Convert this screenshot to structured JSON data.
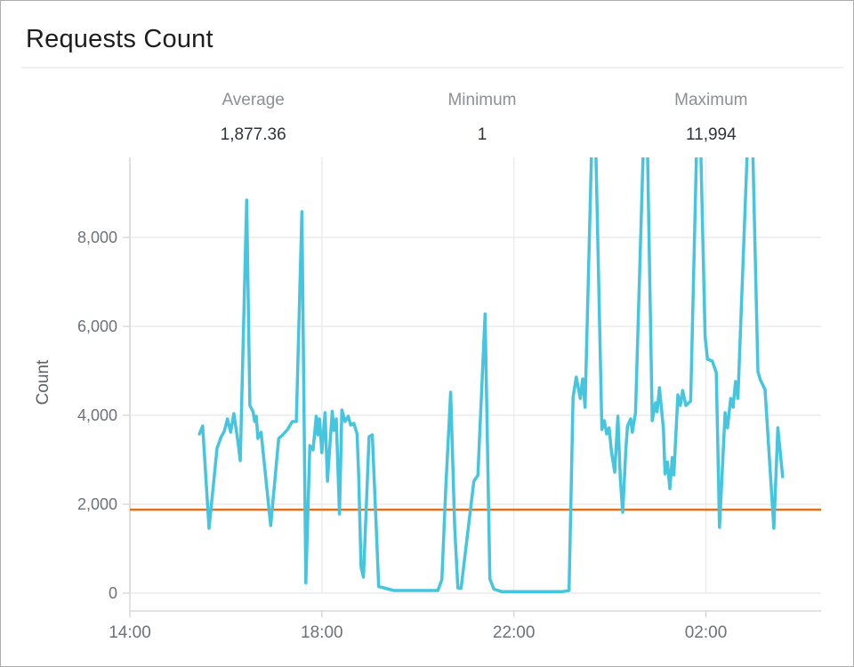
{
  "window": {
    "title": "Requests Count"
  },
  "chart_data": {
    "type": "line",
    "title": "Requests Count",
    "ylabel": "Count",
    "summary": [
      {
        "label": "Average",
        "value": "1,877.36"
      },
      {
        "label": "Minimum",
        "value": "1"
      },
      {
        "label": "Maximum",
        "value": "11,994"
      }
    ],
    "x_axis": {
      "unit": "minutes since 14:00",
      "minutes_range": [
        0,
        864
      ],
      "ticks": [
        {
          "t": 0,
          "label": "14:00"
        },
        {
          "t": 240,
          "label": "18:00"
        },
        {
          "t": 480,
          "label": "22:00"
        },
        {
          "t": 720,
          "label": "02:00"
        }
      ]
    },
    "y_axis": {
      "range": [
        0,
        9800
      ],
      "ticks": [
        {
          "v": 0,
          "label": "0"
        },
        {
          "v": 2000,
          "label": "2,000"
        },
        {
          "v": 4000,
          "label": "4,000"
        },
        {
          "v": 6000,
          "label": "6,000"
        },
        {
          "v": 8000,
          "label": "8,000"
        }
      ]
    },
    "reference_line": {
      "name": "average",
      "value": 1877.36,
      "color": "#e0711f",
      "stroke_width": 2.5
    },
    "colors": {
      "grid": "#ececec",
      "axis": "#d8d8d8",
      "tick_mark": "#c9c9c9"
    },
    "series": [
      {
        "name": "Requests Count",
        "color": "#45c5de",
        "stroke_width": 3.5,
        "points": [
          [
            87,
            3580
          ],
          [
            91,
            3760
          ],
          [
            99,
            1460
          ],
          [
            109,
            3260
          ],
          [
            114,
            3510
          ],
          [
            118,
            3640
          ],
          [
            122,
            3920
          ],
          [
            126,
            3620
          ],
          [
            130,
            4040
          ],
          [
            135,
            3420
          ],
          [
            138,
            2980
          ],
          [
            146,
            8840
          ],
          [
            150,
            4220
          ],
          [
            154,
            4080
          ],
          [
            156,
            3860
          ],
          [
            158,
            3980
          ],
          [
            160,
            3480
          ],
          [
            164,
            3620
          ],
          [
            176,
            1520
          ],
          [
            186,
            3480
          ],
          [
            191,
            3560
          ],
          [
            197,
            3680
          ],
          [
            203,
            3860
          ],
          [
            208,
            3860
          ],
          [
            215,
            8580
          ],
          [
            220,
            230
          ],
          [
            225,
            3320
          ],
          [
            229,
            3220
          ],
          [
            233,
            3980
          ],
          [
            235,
            3560
          ],
          [
            237,
            3920
          ],
          [
            240,
            3160
          ],
          [
            244,
            4060
          ],
          [
            247,
            2520
          ],
          [
            253,
            4090
          ],
          [
            255,
            3660
          ],
          [
            258,
            3920
          ],
          [
            262,
            1780
          ],
          [
            265,
            4120
          ],
          [
            269,
            3860
          ],
          [
            273,
            3980
          ],
          [
            276,
            3780
          ],
          [
            280,
            3820
          ],
          [
            284,
            3580
          ],
          [
            286,
            2660
          ],
          [
            289,
            580
          ],
          [
            292,
            360
          ],
          [
            299,
            3520
          ],
          [
            303,
            3560
          ],
          [
            308,
            1460
          ],
          [
            311,
            150
          ],
          [
            330,
            60
          ],
          [
            385,
            60
          ],
          [
            390,
            300
          ],
          [
            395,
            2400
          ],
          [
            401,
            4520
          ],
          [
            406,
            1500
          ],
          [
            410,
            120
          ],
          [
            414,
            110
          ],
          [
            430,
            2520
          ],
          [
            435,
            2650
          ],
          [
            444,
            6280
          ],
          [
            450,
            320
          ],
          [
            455,
            90
          ],
          [
            465,
            35
          ],
          [
            540,
            35
          ],
          [
            549,
            60
          ],
          [
            554,
            4400
          ],
          [
            558,
            4860
          ],
          [
            563,
            4380
          ],
          [
            566,
            4820
          ],
          [
            569,
            4180
          ],
          [
            580,
            11994
          ],
          [
            590,
            3680
          ],
          [
            593,
            3880
          ],
          [
            596,
            3580
          ],
          [
            599,
            3720
          ],
          [
            602,
            3180
          ],
          [
            606,
            2720
          ],
          [
            610,
            3980
          ],
          [
            613,
            2580
          ],
          [
            616,
            1820
          ],
          [
            620,
            3260
          ],
          [
            622,
            3760
          ],
          [
            626,
            3920
          ],
          [
            628,
            3620
          ],
          [
            632,
            4060
          ],
          [
            645,
            11994
          ],
          [
            653,
            3880
          ],
          [
            657,
            4280
          ],
          [
            659,
            4080
          ],
          [
            662,
            4620
          ],
          [
            667,
            3690
          ],
          [
            669,
            2680
          ],
          [
            672,
            2950
          ],
          [
            675,
            2350
          ],
          [
            678,
            3050
          ],
          [
            680,
            2660
          ],
          [
            685,
            4460
          ],
          [
            688,
            4220
          ],
          [
            691,
            4560
          ],
          [
            695,
            4220
          ],
          [
            698,
            4270
          ],
          [
            701,
            4320
          ],
          [
            711,
            11994
          ],
          [
            719,
            5780
          ],
          [
            722,
            5260
          ],
          [
            728,
            5220
          ],
          [
            733,
            4960
          ],
          [
            737,
            1480
          ],
          [
            744,
            4060
          ],
          [
            747,
            3720
          ],
          [
            751,
            4380
          ],
          [
            754,
            4180
          ],
          [
            757,
            4760
          ],
          [
            760,
            4380
          ],
          [
            776,
            11994
          ],
          [
            785,
            4980
          ],
          [
            788,
            4800
          ],
          [
            794,
            4580
          ],
          [
            805,
            1460
          ],
          [
            810,
            3720
          ],
          [
            816,
            2620
          ]
        ]
      }
    ]
  }
}
